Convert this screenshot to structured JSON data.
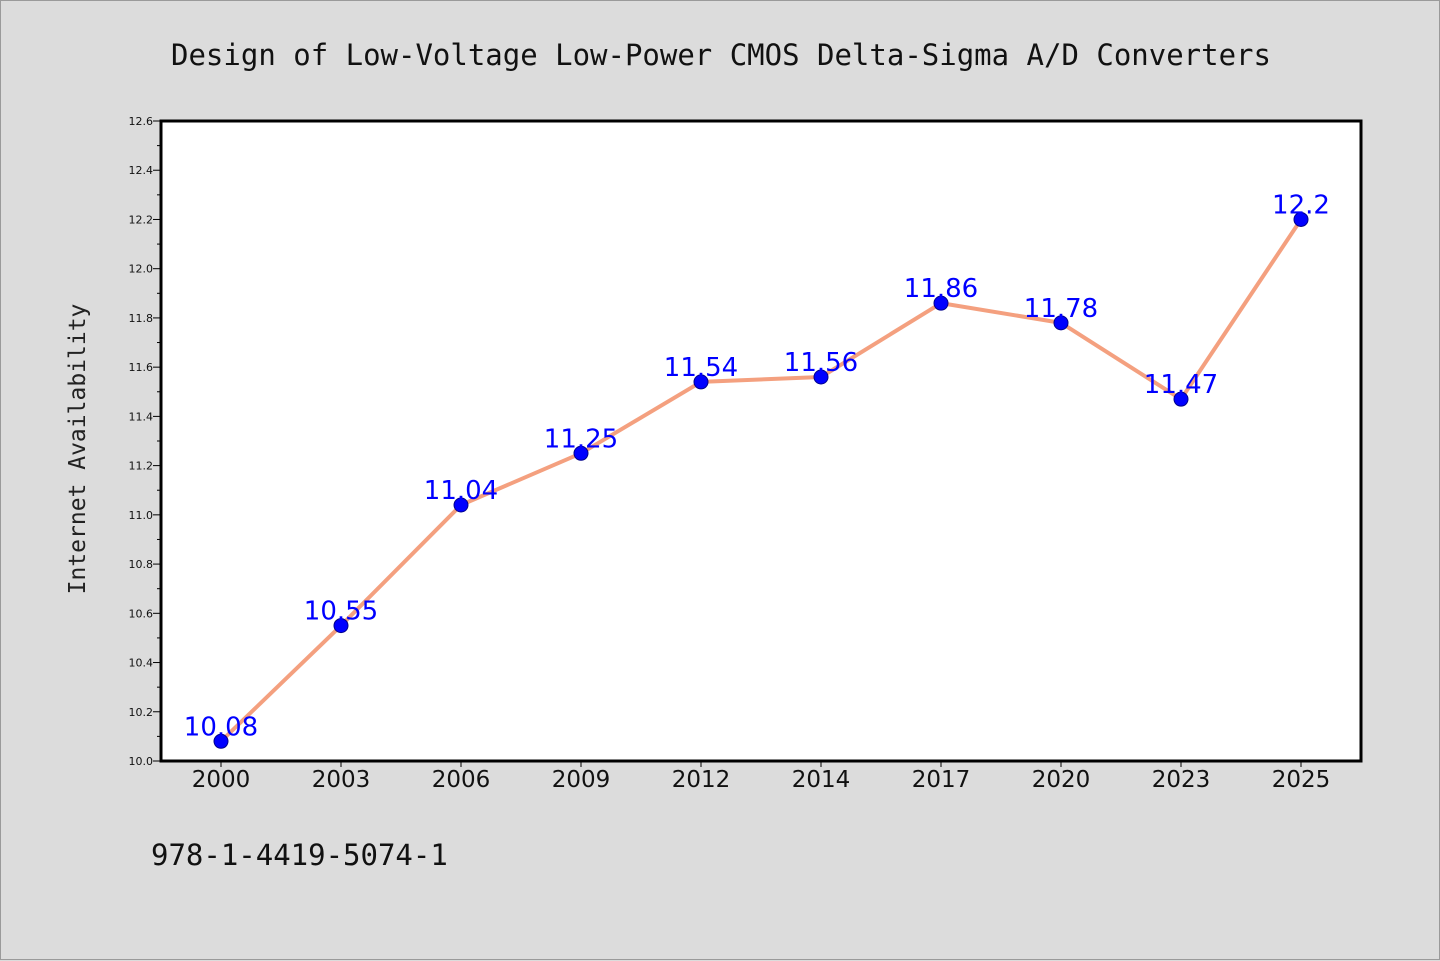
{
  "colors": {
    "background": "#dcdcdc",
    "plot_area": "#ffffff",
    "line": "#f4a07f",
    "markers": "#0000ff",
    "data_labels": "#0000ff",
    "axis": "#000000"
  },
  "footer": {
    "isbn": "978-1-4419-5074-1"
  },
  "chart_data": {
    "type": "line",
    "title": "Design of Low-Voltage Low-Power CMOS Delta-Sigma A/D Converters",
    "xlabel": "",
    "ylabel": "Internet Availability",
    "categories": [
      "2000",
      "2003",
      "2006",
      "2009",
      "2012",
      "2014",
      "2017",
      "2020",
      "2023",
      "2025"
    ],
    "series": [
      {
        "values": [
          10.08,
          10.55,
          11.04,
          11.25,
          11.54,
          11.56,
          11.86,
          11.78,
          11.47,
          12.2
        ],
        "data_labels": [
          "10.08",
          "10.55",
          "11.04",
          "11.25",
          "11.54",
          "11.56",
          "11.86",
          "11.78",
          "11.47",
          "12.2"
        ]
      }
    ],
    "ylim": [
      10.0,
      12.6
    ],
    "yticks": [
      "10.0",
      "10.2",
      "10.4",
      "10.6",
      "10.8",
      "11.0",
      "11.2",
      "11.4",
      "11.6",
      "11.8",
      "12.0",
      "12.2",
      "12.4",
      "12.6"
    ],
    "grid": false,
    "legend": "none",
    "markers": "circle"
  }
}
